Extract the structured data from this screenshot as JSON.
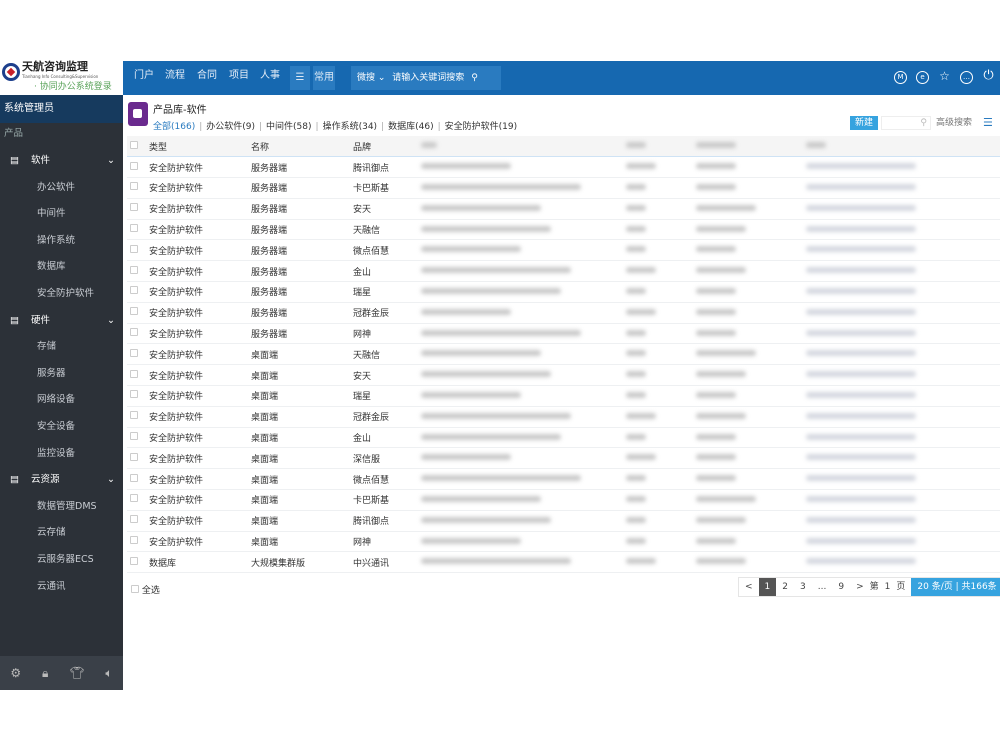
{
  "logo": {
    "name": "天航咨询监理",
    "english": "Tianhang Info Consulting&Supervision",
    "subtitle": "· 协同办公系统登录"
  },
  "topnav": {
    "items": [
      "门户",
      "流程",
      "合同",
      "项目",
      "人事"
    ],
    "menu_icon": "hamburger-icon",
    "common": "常用",
    "search_scope": "微搜",
    "search_placeholder": "请输入关键词搜索",
    "right_icons": [
      "m-circle-icon",
      "e-circle-icon",
      "star-icon",
      "chat-icon",
      "power-icon"
    ]
  },
  "sidebar": {
    "user": "系统管理员",
    "section": "产品",
    "groups": [
      {
        "label": "软件",
        "icon": "list-icon",
        "items": [
          "办公软件",
          "中间件",
          "操作系统",
          "数据库",
          "安全防护软件"
        ]
      },
      {
        "label": "硬件",
        "icon": "list-icon",
        "items": [
          "存储",
          "服务器",
          "网络设备",
          "安全设备",
          "监控设备"
        ]
      },
      {
        "label": "云资源",
        "icon": "list-icon",
        "items": [
          "数据管理DMS",
          "云存储",
          "云服务器ECS",
          "云通讯"
        ]
      }
    ],
    "bottom_icons": [
      "gear-icon",
      "lock-icon",
      "shirt-icon",
      "speaker-icon"
    ]
  },
  "page": {
    "title": "产品库-软件",
    "tabs": [
      {
        "label": "全部(166)",
        "active": true
      },
      {
        "label": "办公软件(9)"
      },
      {
        "label": "中间件(58)"
      },
      {
        "label": "操作系统(34)"
      },
      {
        "label": "数据库(46)"
      },
      {
        "label": "安全防护软件(19)"
      }
    ],
    "new_button": "新建",
    "search_value": "",
    "advanced_search": "高级搜索"
  },
  "table": {
    "columns": [
      "类型",
      "名称",
      "品牌"
    ],
    "rows": [
      [
        "安全防护软件",
        "服务器端",
        "腾讯御点"
      ],
      [
        "安全防护软件",
        "服务器端",
        "卡巴斯基"
      ],
      [
        "安全防护软件",
        "服务器端",
        "安天"
      ],
      [
        "安全防护软件",
        "服务器端",
        "天融信"
      ],
      [
        "安全防护软件",
        "服务器端",
        "微点佰慧"
      ],
      [
        "安全防护软件",
        "服务器端",
        "金山"
      ],
      [
        "安全防护软件",
        "服务器端",
        "瑞星"
      ],
      [
        "安全防护软件",
        "服务器端",
        "冠群金辰"
      ],
      [
        "安全防护软件",
        "服务器端",
        "网神"
      ],
      [
        "安全防护软件",
        "桌面端",
        "天融信"
      ],
      [
        "安全防护软件",
        "桌面端",
        "安天"
      ],
      [
        "安全防护软件",
        "桌面端",
        "瑞星"
      ],
      [
        "安全防护软件",
        "桌面端",
        "冠群金辰"
      ],
      [
        "安全防护软件",
        "桌面端",
        "金山"
      ],
      [
        "安全防护软件",
        "桌面端",
        "深信服"
      ],
      [
        "安全防护软件",
        "桌面端",
        "微点佰慧"
      ],
      [
        "安全防护软件",
        "桌面端",
        "卡巴斯基"
      ],
      [
        "安全防护软件",
        "桌面端",
        "腾讯御点"
      ],
      [
        "安全防护软件",
        "桌面端",
        "网神"
      ],
      [
        "数据库",
        "大规模集群版",
        "中兴通讯"
      ]
    ]
  },
  "footer": {
    "select_all": "全选",
    "pager": {
      "prev": "<",
      "pages": [
        "1",
        "2",
        "3",
        "...",
        "9"
      ],
      "current": "1",
      "next": ">",
      "goto_prefix": "第",
      "goto_value": "1",
      "goto_suffix": "页",
      "info": "20 条/页 | 共166条"
    }
  },
  "colors": {
    "header": "#1668b0",
    "sidebar": "#2c3138",
    "accent": "#36a3df"
  }
}
